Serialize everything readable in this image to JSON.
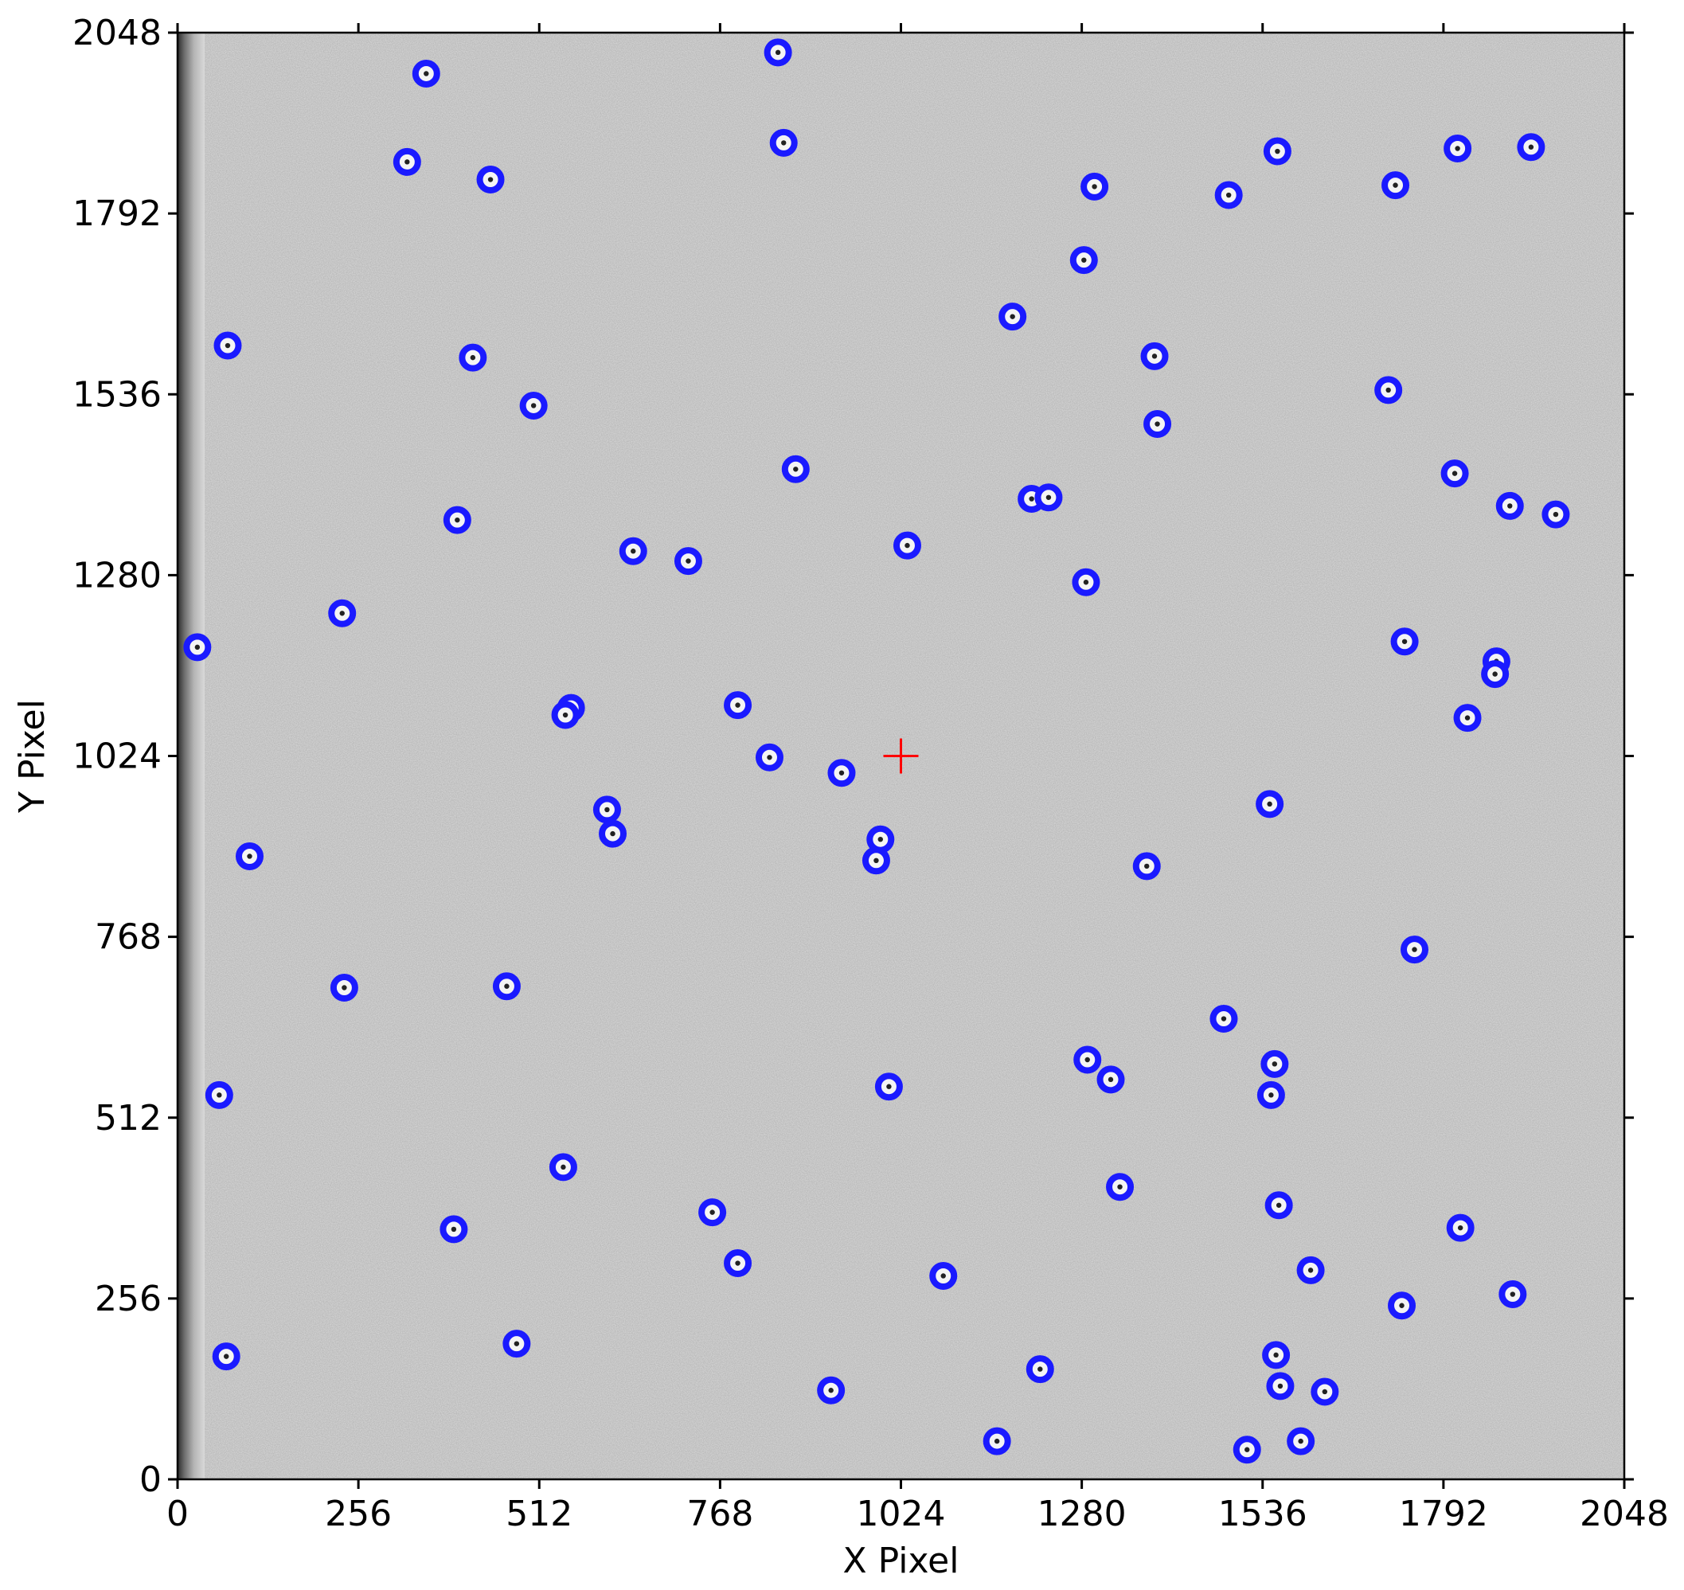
{
  "chart_data": {
    "type": "scatter",
    "title": "",
    "xlabel": "X Pixel",
    "ylabel": "Y Pixel",
    "xlim": [
      0,
      2048
    ],
    "ylim": [
      0,
      2048
    ],
    "xticks": [
      0,
      256,
      512,
      768,
      1024,
      1280,
      1536,
      1792,
      2048
    ],
    "yticks": [
      0,
      256,
      512,
      768,
      1024,
      1280,
      1536,
      1792,
      2048
    ],
    "grid": false,
    "background": "grayscale detector image",
    "marker_style": "open circle",
    "colors": {
      "markers": "#1a1aff",
      "center_marker": "#ff0000",
      "axis": "#000000",
      "image_bg": "#dedede"
    },
    "center_marker": {
      "x": 1024,
      "y": 1024,
      "style": "plus"
    },
    "series": [
      {
        "points": [
          [
            850,
            2020
          ],
          [
            352,
            1990
          ],
          [
            858,
            1892
          ],
          [
            325,
            1865
          ],
          [
            443,
            1840
          ],
          [
            1557,
            1880
          ],
          [
            1812,
            1884
          ],
          [
            1916,
            1886
          ],
          [
            1298,
            1830
          ],
          [
            1488,
            1818
          ],
          [
            1724,
            1832
          ],
          [
            1283,
            1726
          ],
          [
            71,
            1605
          ],
          [
            418,
            1588
          ],
          [
            1182,
            1646
          ],
          [
            1383,
            1590
          ],
          [
            504,
            1520
          ],
          [
            1714,
            1542
          ],
          [
            1387,
            1494
          ],
          [
            875,
            1430
          ],
          [
            1808,
            1424
          ],
          [
            1209,
            1388
          ],
          [
            1233,
            1390
          ],
          [
            1886,
            1378
          ],
          [
            1951,
            1366
          ],
          [
            396,
            1358
          ],
          [
            645,
            1314
          ],
          [
            723,
            1300
          ],
          [
            1033,
            1322
          ],
          [
            1286,
            1270
          ],
          [
            233,
            1226
          ],
          [
            28,
            1178
          ],
          [
            1737,
            1186
          ],
          [
            1867,
            1158
          ],
          [
            1865,
            1140
          ],
          [
            557,
            1092
          ],
          [
            549,
            1082
          ],
          [
            793,
            1096
          ],
          [
            1826,
            1078
          ],
          [
            838,
            1022
          ],
          [
            940,
            1000
          ],
          [
            608,
            948
          ],
          [
            616,
            914
          ],
          [
            995,
            906
          ],
          [
            989,
            876
          ],
          [
            102,
            882
          ],
          [
            1372,
            868
          ],
          [
            1546,
            956
          ],
          [
            1751,
            750
          ],
          [
            236,
            696
          ],
          [
            466,
            698
          ],
          [
            1481,
            652
          ],
          [
            1288,
            594
          ],
          [
            1321,
            566
          ],
          [
            1553,
            588
          ],
          [
            1007,
            556
          ],
          [
            59,
            544
          ],
          [
            1548,
            544
          ],
          [
            546,
            442
          ],
          [
            1334,
            414
          ],
          [
            1559,
            388
          ],
          [
            757,
            378
          ],
          [
            391,
            354
          ],
          [
            1816,
            356
          ],
          [
            793,
            306
          ],
          [
            1084,
            288
          ],
          [
            1604,
            296
          ],
          [
            1733,
            246
          ],
          [
            1890,
            262
          ],
          [
            480,
            192
          ],
          [
            69,
            174
          ],
          [
            1555,
            176
          ],
          [
            1221,
            156
          ],
          [
            925,
            126
          ],
          [
            1561,
            132
          ],
          [
            1624,
            124
          ],
          [
            1160,
            54
          ],
          [
            1590,
            54
          ],
          [
            1514,
            42
          ]
        ]
      }
    ]
  }
}
